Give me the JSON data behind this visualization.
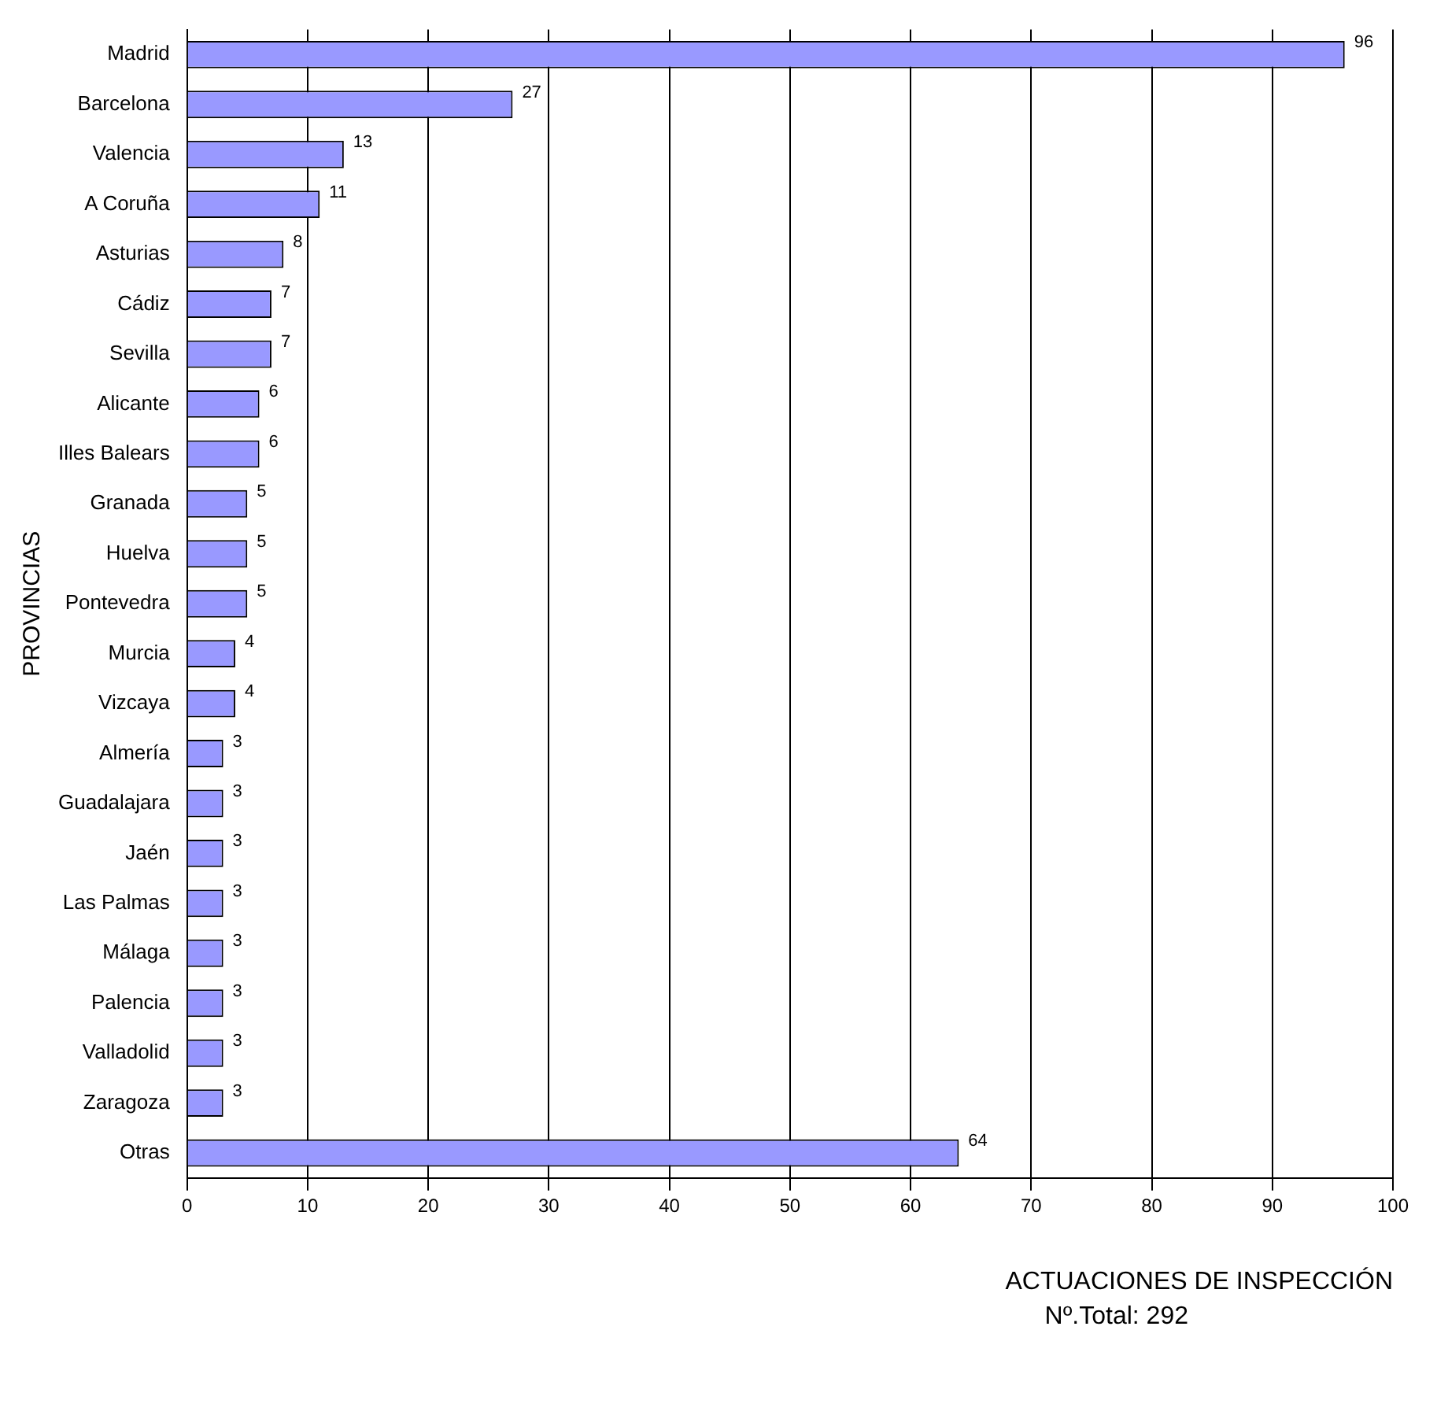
{
  "chart_data": {
    "type": "bar",
    "orientation": "horizontal",
    "categories": [
      "Madrid",
      "Barcelona",
      "Valencia",
      "A Coruña",
      "Asturias",
      "Cádiz",
      "Sevilla",
      "Alicante",
      "Illes Balears",
      "Granada",
      "Huelva",
      "Pontevedra",
      "Murcia",
      "Vizcaya",
      "Almería",
      "Guadalajara",
      "Jaén",
      "Las Palmas",
      "Málaga",
      "Palencia",
      "Valladolid",
      "Zaragoza",
      "Otras"
    ],
    "values": [
      96,
      27,
      13,
      11,
      8,
      7,
      7,
      6,
      6,
      5,
      5,
      5,
      4,
      4,
      3,
      3,
      3,
      3,
      3,
      3,
      3,
      3,
      64
    ],
    "color": "#9999ff",
    "xlim": [
      0,
      100
    ],
    "xticks": [
      0,
      10,
      20,
      30,
      40,
      50,
      60,
      70,
      80,
      90,
      100
    ],
    "xlabel": "ACTUACIONES DE INSPECCIÓN",
    "ylabel": "PROVINCIAS",
    "annotations": [
      "Nº.Total: 292"
    ],
    "data_labels": true,
    "grid": "x",
    "legend": false
  }
}
